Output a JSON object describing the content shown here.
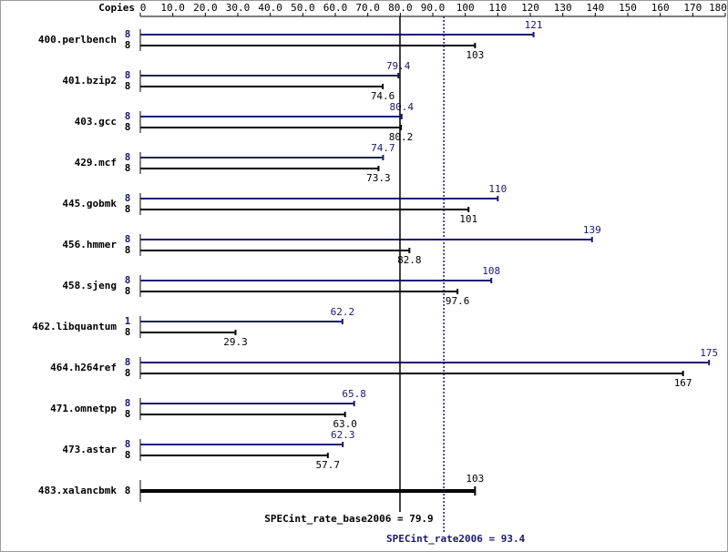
{
  "chart_data": {
    "type": "spec-bar",
    "axis_label": "Copies",
    "xlim": [
      0,
      180
    ],
    "xticks": [
      0,
      {
        "value": 10,
        "label": "10.0"
      },
      {
        "value": 20,
        "label": "20.0"
      },
      {
        "value": 30,
        "label": "30.0"
      },
      {
        "value": 40,
        "label": "40.0"
      },
      {
        "value": 50,
        "label": "50.0"
      },
      {
        "value": 60,
        "label": "60.0"
      },
      {
        "value": 70,
        "label": "70.0"
      },
      {
        "value": 80,
        "label": "80.0"
      },
      {
        "value": 90,
        "label": "90.0"
      },
      100,
      110,
      120,
      130,
      140,
      150,
      160,
      170,
      180
    ],
    "categories": [
      "400.perlbench",
      "401.bzip2",
      "403.gcc",
      "429.mcf",
      "445.gobmk",
      "456.hmmer",
      "458.sjeng",
      "462.libquantum",
      "464.h264ref",
      "471.omnetpp",
      "473.astar",
      "483.xalancbmk"
    ],
    "series": [
      {
        "color": "#191970",
        "copies": [
          8,
          8,
          8,
          8,
          8,
          8,
          8,
          1,
          8,
          8,
          8,
          null
        ],
        "values": [
          121,
          79.4,
          80.4,
          74.7,
          110,
          139,
          108,
          62.2,
          175,
          65.8,
          62.3,
          null
        ],
        "value_labels": [
          "121",
          "79.4",
          "80.4",
          "74.7",
          "110",
          "139",
          "108",
          "62.2",
          "175",
          "65.8",
          "62.3",
          null
        ]
      },
      {
        "color": "#000000",
        "copies": [
          8,
          8,
          8,
          8,
          8,
          8,
          8,
          8,
          8,
          8,
          8,
          8
        ],
        "values": [
          103,
          74.6,
          80.2,
          73.3,
          101,
          82.8,
          97.6,
          29.3,
          167,
          63.0,
          57.7,
          103
        ],
        "value_labels": [
          "103",
          "74.6",
          "80.2",
          "73.3",
          "101",
          "82.8",
          "97.6",
          "29.3",
          "167",
          "63.0",
          "57.7",
          "103"
        ]
      }
    ],
    "reference_lines": [
      {
        "label": "SPECint_rate_base2006 = 79.9",
        "value": 79.9,
        "color": "#000000",
        "style": "solid"
      },
      {
        "label": "SPECint_rate2006 = 93.4",
        "value": 93.4,
        "color": "#191970",
        "style": "dotted"
      }
    ]
  }
}
